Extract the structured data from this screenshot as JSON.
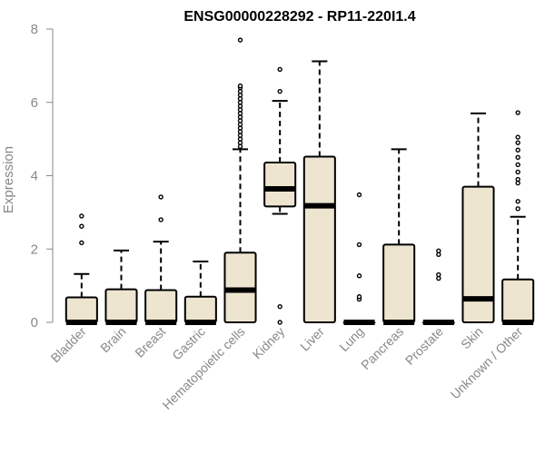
{
  "chart_data": {
    "type": "boxplot",
    "title": "ENSG00000228292 - RP11-220I1.4",
    "xlabel": "",
    "ylabel": "Expression",
    "ylim": [
      0,
      8
    ],
    "yticks": [
      "0",
      "2",
      "4",
      "6",
      "8"
    ],
    "box_fill": "#ede5cf",
    "box_stroke": "#000000",
    "categories": [
      "Bladder",
      "Brain",
      "Breast",
      "Gastric",
      "Hematopoietic cells",
      "Kidney",
      "Liver",
      "Lung",
      "Pancreas",
      "Prostate",
      "Skin",
      "Unknown / Other"
    ],
    "boxes": [
      {
        "q1": 0,
        "median": 0,
        "q3": 0.68,
        "whisker_low": 0,
        "whisker_high": 1.32,
        "outliers": [
          2.17,
          2.62,
          2.9
        ]
      },
      {
        "q1": 0,
        "median": 0,
        "q3": 0.9,
        "whisker_low": 0,
        "whisker_high": 1.96,
        "outliers": []
      },
      {
        "q1": 0,
        "median": 0,
        "q3": 0.88,
        "whisker_low": 0,
        "whisker_high": 2.2,
        "outliers": [
          2.8,
          3.42
        ]
      },
      {
        "q1": 0,
        "median": 0,
        "q3": 0.7,
        "whisker_low": 0,
        "whisker_high": 1.66,
        "outliers": []
      },
      {
        "q1": 0,
        "median": 0.88,
        "q3": 1.9,
        "whisker_low": 0,
        "whisker_high": 4.72,
        "outliers": [
          4.8,
          4.9,
          5.0,
          5.1,
          5.2,
          5.3,
          5.4,
          5.5,
          5.6,
          5.7,
          5.8,
          5.9,
          6.0,
          6.1,
          6.2,
          6.3,
          6.4,
          6.45,
          7.7
        ]
      },
      {
        "q1": 3.16,
        "median": 3.64,
        "q3": 4.36,
        "whisker_low": 2.96,
        "whisker_high": 6.04,
        "outliers": [
          0,
          0.43,
          6.3,
          6.9
        ]
      },
      {
        "q1": 0,
        "median": 3.18,
        "q3": 4.52,
        "whisker_low": 0,
        "whisker_high": 7.12,
        "outliers": []
      },
      {
        "q1": 0,
        "median": 0,
        "q3": 0,
        "whisker_low": 0,
        "whisker_high": 0,
        "outliers": [
          0.63,
          0.7,
          1.27,
          2.12,
          3.48
        ]
      },
      {
        "q1": 0,
        "median": 0,
        "q3": 2.12,
        "whisker_low": 0,
        "whisker_high": 4.72,
        "outliers": []
      },
      {
        "q1": 0,
        "median": 0,
        "q3": 0,
        "whisker_low": 0,
        "whisker_high": 0,
        "outliers": [
          1.2,
          1.3,
          1.85,
          1.95
        ]
      },
      {
        "q1": 0,
        "median": 0.64,
        "q3": 3.7,
        "whisker_low": 0,
        "whisker_high": 5.7,
        "outliers": []
      },
      {
        "q1": 0,
        "median": 0,
        "q3": 1.17,
        "whisker_low": 0,
        "whisker_high": 2.88,
        "outliers": [
          3.1,
          3.3,
          3.8,
          3.9,
          4.1,
          4.3,
          4.5,
          4.7,
          4.9,
          5.05,
          5.72
        ]
      }
    ]
  }
}
